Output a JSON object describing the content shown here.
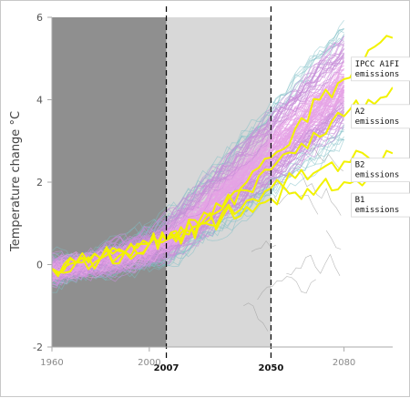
{
  "chart_data": {
    "type": "line",
    "title": "",
    "xlabel": "",
    "ylabel": "Temperature change °C",
    "xlim": [
      1960,
      2100
    ],
    "ylim": [
      -2,
      6
    ],
    "x_ticks": [
      1960,
      2000,
      2080
    ],
    "y_ticks": [
      -2,
      0,
      2,
      4,
      6
    ],
    "y_tick_labels": [
      "-2",
      "0",
      "2",
      "4",
      "6"
    ],
    "x_tick_labels": [
      "1960",
      "2000",
      "2080"
    ],
    "period_markers": [
      {
        "year": 2007,
        "label": "2007"
      },
      {
        "year": 2050,
        "label": "2050"
      }
    ],
    "shaded_periods": [
      {
        "from": 1960,
        "to": 2007,
        "color": "#8f8f8f"
      },
      {
        "from": 2007,
        "to": 2050,
        "color": "#d8d8d8"
      }
    ],
    "ensemble": {
      "member_count_drawn": 140,
      "median": [
        {
          "x": 1960,
          "y": -0.15
        },
        {
          "x": 1970,
          "y": -0.05
        },
        {
          "x": 1980,
          "y": 0.05
        },
        {
          "x": 1990,
          "y": 0.2
        },
        {
          "x": 2000,
          "y": 0.4
        },
        {
          "x": 2007,
          "y": 0.6
        },
        {
          "x": 2020,
          "y": 1.2
        },
        {
          "x": 2035,
          "y": 2.0
        },
        {
          "x": 2050,
          "y": 2.8
        },
        {
          "x": 2065,
          "y": 3.6
        },
        {
          "x": 2080,
          "y": 4.4
        }
      ],
      "band_colors": [
        "#e6a3e6",
        "#c88fd8",
        "#7fbfc6",
        "#3a3a3a"
      ]
    },
    "series": [
      {
        "name": "IPCC A1FI emissions",
        "color": "#f2f200",
        "x": [
          1960,
          1970,
          1980,
          1990,
          2000,
          2007,
          2015,
          2020,
          2030,
          2040,
          2050,
          2060,
          2070,
          2080,
          2090,
          2100
        ],
        "y": [
          -0.1,
          0.05,
          0.15,
          0.3,
          0.5,
          0.6,
          0.85,
          1.0,
          1.4,
          2.0,
          2.6,
          3.3,
          4.0,
          4.5,
          5.2,
          5.5
        ]
      },
      {
        "name": "A2 emissions",
        "color": "#f2f200",
        "x": [
          1960,
          1970,
          1980,
          1990,
          2000,
          2007,
          2015,
          2020,
          2030,
          2040,
          2050,
          2060,
          2070,
          2080,
          2090,
          2100
        ],
        "y": [
          -0.1,
          0.05,
          0.15,
          0.3,
          0.5,
          0.6,
          0.85,
          1.0,
          1.35,
          1.8,
          2.3,
          2.7,
          3.1,
          3.6,
          4.0,
          4.3
        ]
      },
      {
        "name": "B2 emissions",
        "color": "#f2f200",
        "x": [
          1960,
          1970,
          1980,
          1990,
          2000,
          2007,
          2015,
          2020,
          2030,
          2040,
          2050,
          2060,
          2070,
          2080,
          2090,
          2100
        ],
        "y": [
          -0.1,
          0.05,
          0.15,
          0.3,
          0.5,
          0.6,
          0.8,
          0.95,
          1.25,
          1.55,
          1.85,
          2.1,
          2.3,
          2.5,
          2.6,
          2.7
        ]
      },
      {
        "name": "B1 emissions",
        "color": "#f2f200",
        "x": [
          1960,
          1970,
          1980,
          1990,
          2000,
          2007,
          2015,
          2020,
          2030,
          2040,
          2050,
          2060,
          2070,
          2080,
          2090,
          2100
        ],
        "y": [
          -0.1,
          0.05,
          0.15,
          0.3,
          0.5,
          0.6,
          0.75,
          0.9,
          1.15,
          1.4,
          1.6,
          1.75,
          1.9,
          2.0,
          2.1,
          2.15
        ]
      }
    ],
    "annotations": [
      {
        "lines": [
          "IPCC A1FI",
          "emissions"
        ],
        "x": 2083,
        "y": 4.9
      },
      {
        "lines": [
          "A2",
          "emissions"
        ],
        "x": 2083,
        "y": 3.75
      },
      {
        "lines": [
          "B2",
          "emissions"
        ],
        "x": 2083,
        "y": 2.45
      },
      {
        "lines": [
          "B1",
          "emissions"
        ],
        "x": 2083,
        "y": 1.6
      }
    ],
    "grid": false,
    "legend": "none"
  }
}
